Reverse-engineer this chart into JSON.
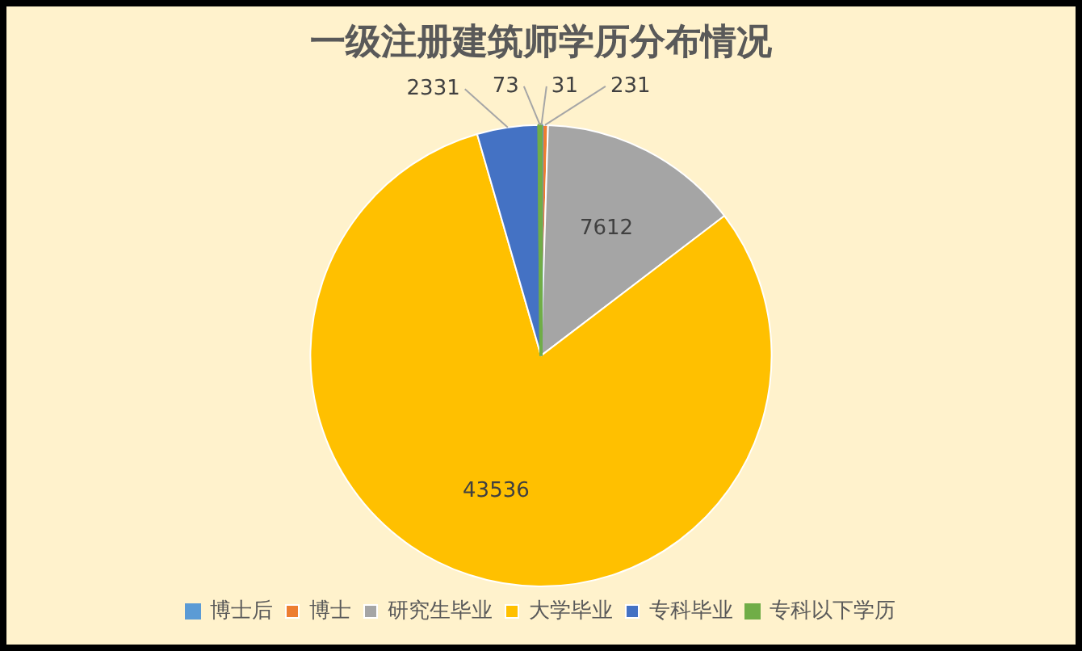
{
  "chart_data": {
    "type": "pie",
    "title": "一级注册建筑师学历分布情况",
    "categories": [
      "博士后",
      "博士",
      "研究生毕业",
      "大学毕业",
      "专科毕业",
      "专科以下学历"
    ],
    "values": [
      31,
      231,
      7612,
      43536,
      2331,
      73
    ],
    "colors": [
      "#5b9bd5",
      "#ed7d31",
      "#a5a5a5",
      "#ffc000",
      "#4472c4",
      "#70ad47"
    ],
    "data_labels": true,
    "legend": "bottom"
  }
}
